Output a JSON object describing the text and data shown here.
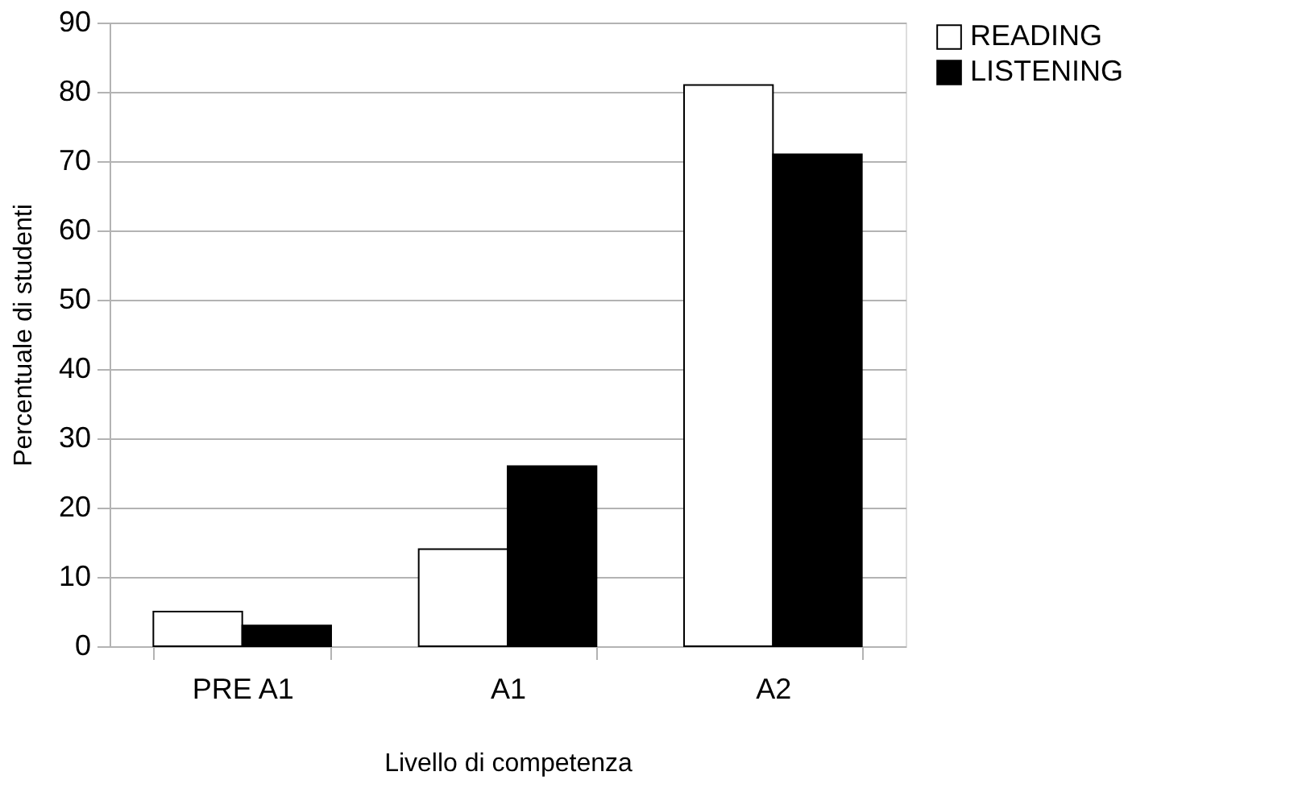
{
  "chart_data": {
    "type": "bar",
    "xlabel": "Livello di competenza",
    "ylabel": "Percentuale di studenti",
    "categories": [
      "PRE A1",
      "A1",
      "A2"
    ],
    "series": [
      {
        "name": "READING",
        "color": "#ffffff",
        "values": [
          5,
          14,
          81
        ]
      },
      {
        "name": "LISTENING",
        "color": "#000000",
        "values": [
          3,
          26,
          71
        ]
      }
    ],
    "ylim": [
      0,
      90
    ],
    "yticks": [
      0,
      10,
      20,
      30,
      40,
      50,
      60,
      70,
      80,
      90
    ],
    "grid": "y",
    "legend": "right"
  }
}
